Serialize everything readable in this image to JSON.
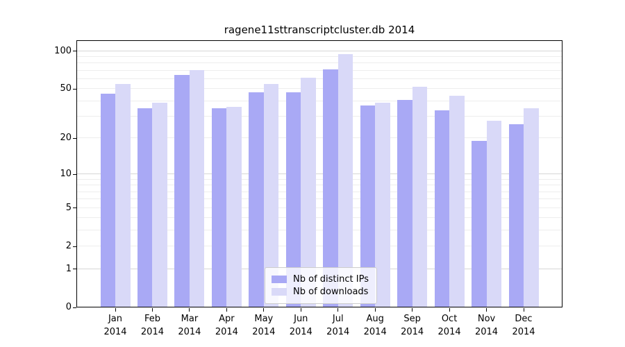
{
  "chart_data": {
    "type": "bar",
    "title": "ragene11sttranscriptcluster.db 2014",
    "categories": [
      "Jan",
      "Feb",
      "Mar",
      "Apr",
      "May",
      "Jun",
      "Jul",
      "Aug",
      "Sep",
      "Oct",
      "Nov",
      "Dec"
    ],
    "category_year": "2014",
    "series": [
      {
        "name": "Nb of distinct IPs",
        "color": "#a9a9f5",
        "values": [
          46,
          35,
          65,
          35,
          47,
          47,
          72,
          37,
          41,
          34,
          19,
          26
        ]
      },
      {
        "name": "Nb of downloads",
        "color": "#d9d9f8",
        "values": [
          55,
          39,
          71,
          36,
          55,
          62,
          95,
          39,
          52,
          44,
          28,
          35
        ]
      }
    ],
    "yscale": "log1p",
    "yticks": [
      0,
      1,
      2,
      5,
      10,
      20,
      50,
      100
    ],
    "ylim": [
      0,
      122
    ],
    "xlabel": "",
    "ylabel": "",
    "grid": "horizontal",
    "legend_position": "lower center"
  }
}
